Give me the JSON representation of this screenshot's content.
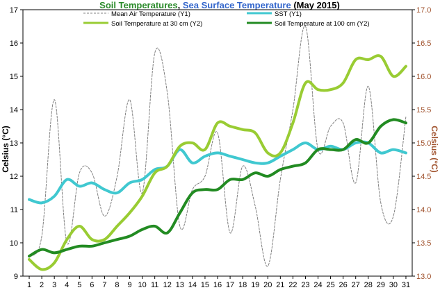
{
  "chart_data": {
    "type": "line",
    "title_parts": [
      {
        "text": "Soil Temperatures",
        "color": "#2a8a2a"
      },
      {
        "text": ", ",
        "color": "#000000"
      },
      {
        "text": "Sea Surface Temperature",
        "color": "#3366cc"
      },
      {
        "text": " (May 2015)",
        "color": "#000000"
      }
    ],
    "ylabel_left": "Celsius (°C)",
    "ylabel_right": "Celsius (°C)",
    "x": [
      1,
      2,
      3,
      4,
      5,
      6,
      7,
      8,
      9,
      10,
      11,
      12,
      13,
      14,
      15,
      16,
      17,
      18,
      19,
      20,
      21,
      22,
      23,
      24,
      25,
      26,
      27,
      28,
      29,
      30,
      31
    ],
    "xlim": [
      0.5,
      31.5
    ],
    "ylim_left": [
      9,
      17
    ],
    "ylim_right": [
      13.0,
      17.0
    ],
    "yticks_left": [
      9,
      10,
      11,
      12,
      13,
      14,
      15,
      16,
      17
    ],
    "yticks_right": [
      "13.0",
      "13.5",
      "14.0",
      "14.5",
      "15.0",
      "15.5",
      "16.0",
      "16.5",
      "17.0"
    ],
    "right_axis_color": "#a0522d",
    "grid": false,
    "series": [
      {
        "name": "Mean Air Temperature (Y1)",
        "axis": "left",
        "color": "#808080",
        "dashed": true,
        "width": 1,
        "values": [
          9.6,
          10.2,
          14.3,
          10.0,
          12.1,
          12.1,
          10.8,
          12.0,
          14.3,
          11.5,
          15.7,
          14.5,
          10.5,
          11.6,
          12.0,
          13.3,
          10.3,
          12.3,
          11.1,
          9.3,
          11.9,
          14.0,
          16.5,
          12.8,
          13.5,
          13.6,
          11.8,
          14.7,
          11.2,
          10.8,
          13.8
        ]
      },
      {
        "name": "SST (Y1)",
        "axis": "left",
        "color": "#40c8d0",
        "dashed": false,
        "width": 4,
        "values": [
          11.3,
          11.2,
          11.4,
          11.9,
          11.7,
          11.8,
          11.6,
          11.5,
          11.8,
          11.9,
          12.2,
          12.3,
          12.8,
          12.4,
          12.6,
          12.7,
          12.6,
          12.5,
          12.4,
          12.4,
          12.6,
          12.8,
          13.0,
          12.8,
          12.9,
          12.8,
          13.0,
          13.0,
          12.7,
          12.8,
          12.7
        ]
      },
      {
        "name": "Soil Temperature at 30 cm (Y2)",
        "axis": "right",
        "color": "#99cc33",
        "dashed": false,
        "width": 4,
        "values": [
          13.25,
          13.1,
          13.2,
          13.55,
          13.75,
          13.55,
          13.55,
          13.75,
          13.95,
          14.2,
          14.55,
          14.65,
          14.95,
          15.0,
          14.9,
          15.3,
          15.25,
          15.2,
          15.15,
          14.85,
          14.85,
          15.3,
          15.9,
          15.8,
          15.8,
          15.9,
          16.25,
          16.25,
          16.3,
          16.0,
          16.15
        ]
      },
      {
        "name": "Soil Temperature at 100 cm (Y2)",
        "axis": "right",
        "color": "#228b22",
        "dashed": false,
        "width": 4,
        "values": [
          13.3,
          13.4,
          13.35,
          13.4,
          13.45,
          13.45,
          13.5,
          13.55,
          13.6,
          13.7,
          13.75,
          13.65,
          13.95,
          14.25,
          14.3,
          14.3,
          14.45,
          14.45,
          14.55,
          14.5,
          14.6,
          14.65,
          14.7,
          14.9,
          14.9,
          14.9,
          15.05,
          15.0,
          15.25,
          15.35,
          15.3
        ]
      }
    ]
  }
}
